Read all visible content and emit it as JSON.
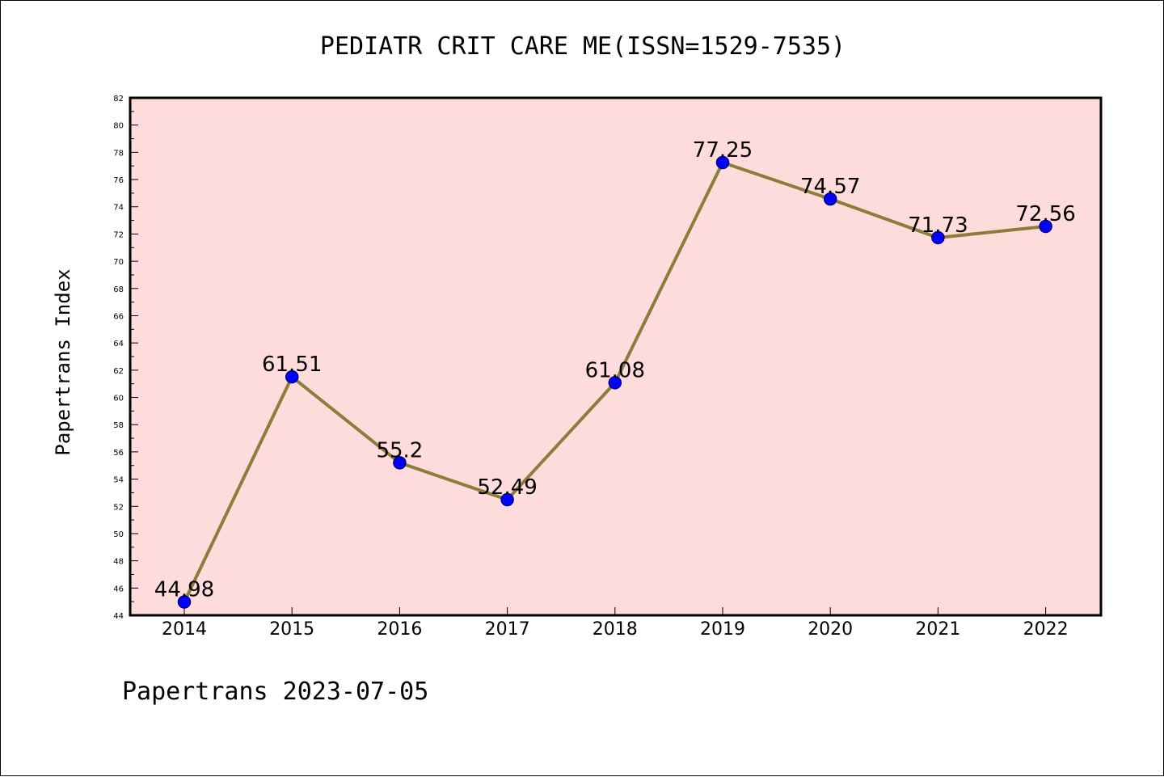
{
  "colors": {
    "plot_background": "#ffdcdc",
    "line": "#8b7d3a",
    "marker_fill": "#0000ff",
    "marker_edge": "#00008b",
    "axis": "#000000"
  },
  "footer": "Papertrans 2023-07-05",
  "chart_data": {
    "type": "line",
    "title": "PEDIATR CRIT CARE ME(ISSN=1529-7535)",
    "xlabel": "",
    "ylabel": "Papertrans Index",
    "x": [
      "2014",
      "2015",
      "2016",
      "2017",
      "2018",
      "2019",
      "2020",
      "2021",
      "2022"
    ],
    "series": [
      {
        "values": [
          44.98,
          61.51,
          55.2,
          52.49,
          61.08,
          77.25,
          74.57,
          71.73,
          72.56
        ],
        "data_labels": [
          "44.98",
          "61.51",
          "55.2",
          "52.49",
          "61.08",
          "77.25",
          "74.57",
          "71.73",
          "72.56"
        ]
      }
    ],
    "ylim": [
      44,
      82
    ],
    "yticks": [
      44,
      46,
      48,
      50,
      52,
      54,
      56,
      58,
      60,
      62,
      64,
      66,
      68,
      70,
      72,
      74,
      76,
      78,
      80,
      82
    ],
    "grid": false,
    "legend": "none"
  }
}
